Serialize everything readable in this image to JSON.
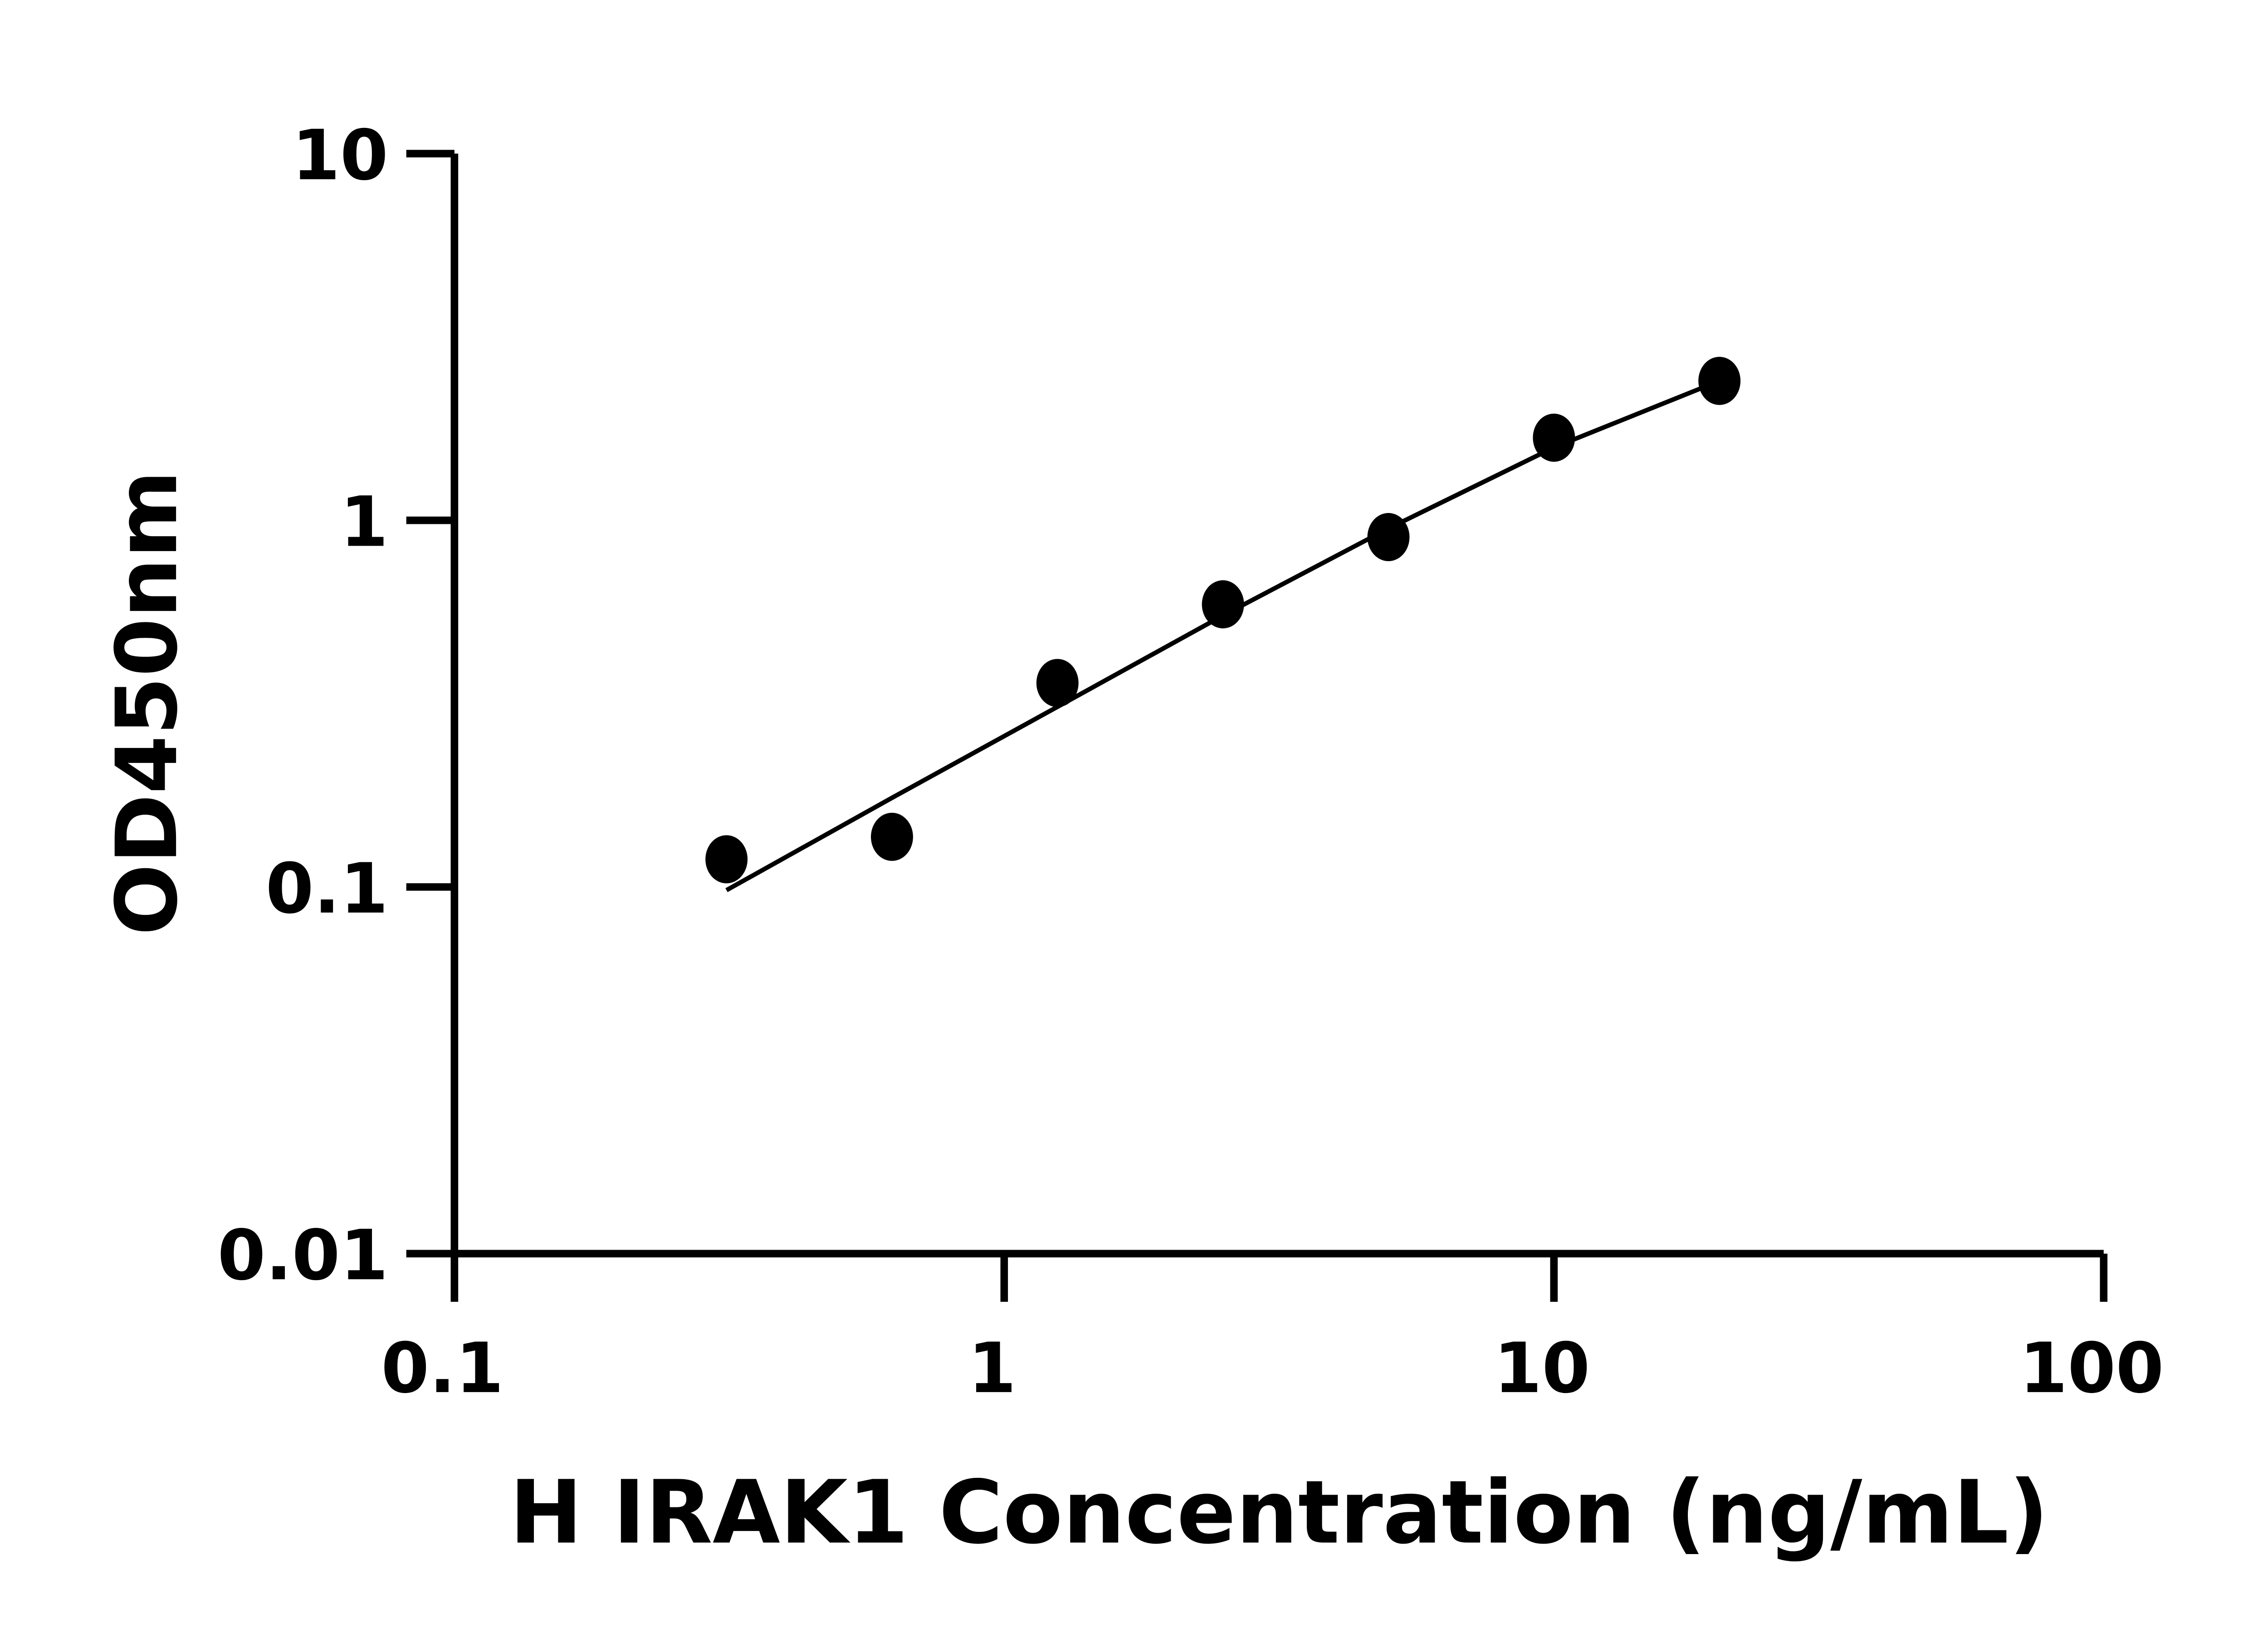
{
  "chart_data": {
    "type": "scatter",
    "title": "",
    "xlabel": "H IRAK1 Concentration (ng/mL)",
    "ylabel": "OD450nm",
    "x_scale": "log",
    "y_scale": "log",
    "xlim": [
      0.1,
      100
    ],
    "ylim": [
      0.01,
      10
    ],
    "x_ticks": [
      "0.1",
      "1",
      "10",
      "100"
    ],
    "y_ticks": [
      "0.01",
      "0.1",
      "1",
      "10"
    ],
    "grid": false,
    "colors": {
      "points": "#000000",
      "fit_line": "#000000"
    },
    "series": [
      {
        "x": [
          0.3125,
          0.625,
          1.25,
          2.5,
          5,
          10,
          20
        ],
        "y": [
          0.119,
          0.137,
          0.36,
          0.59,
          0.9,
          1.68,
          2.4
        ]
      }
    ],
    "fit_curve": {
      "x": [
        0.3125,
        0.625,
        1.25,
        2.5,
        5,
        10,
        20
      ],
      "y": [
        0.098,
        0.175,
        0.31,
        0.55,
        0.95,
        1.58,
        2.4
      ]
    }
  }
}
